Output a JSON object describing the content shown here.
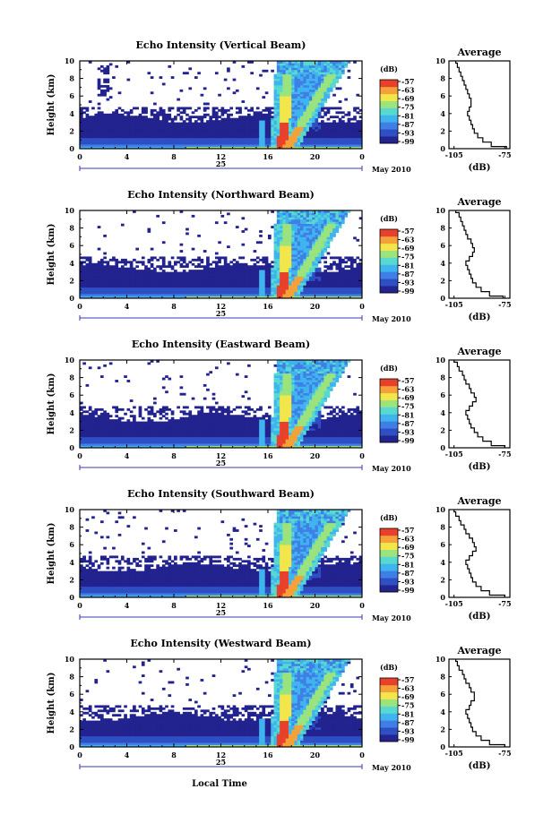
{
  "colors": {
    "scale": [
      "#23238f",
      "#2e4fc4",
      "#3f7fe6",
      "#3fb4ef",
      "#57d9d0",
      "#9be37c",
      "#f2e64a",
      "#f5a13a",
      "#e8412b"
    ],
    "axis": "#000000",
    "date_bar": "#3a3ab5"
  },
  "common": {
    "xlabel": "Local Time",
    "date_center": "25",
    "date_label": "May 2010",
    "profile_title": "Average",
    "profile_xlabel": "(dB)",
    "colorbar_label": "(dB)",
    "ylabel": "Height (km)"
  },
  "chart_data": [
    {
      "type": "heatmap",
      "title": "Echo Intensity (Vertical Beam)",
      "xlabel": "Local Time",
      "ylabel": "Height (km)",
      "x_ticks": [
        "0",
        "4",
        "8",
        "12",
        "16",
        "20",
        "0"
      ],
      "y_ticks": [
        "0",
        "2",
        "4",
        "6",
        "8",
        "10"
      ],
      "xlim": [
        0,
        24
      ],
      "ylim": [
        0,
        10
      ],
      "colorbar": {
        "label": "(dB)",
        "ticks": [
          "-57",
          "-63",
          "-69",
          "-75",
          "-81",
          "-87",
          "-93",
          "-99"
        ]
      },
      "date_axis": {
        "center": "25",
        "label": "May 2010"
      },
      "profile": {
        "title": "Average",
        "xlabel": "(dB)",
        "xticks": [
          "-105",
          "-75"
        ],
        "xlim": [
          -108,
          -72
        ],
        "heights": [
          0,
          0.5,
          1,
          1.5,
          2,
          2.5,
          3,
          3.5,
          4,
          4.5,
          5,
          5.5,
          6,
          6.5,
          7,
          7.5,
          8,
          8.5,
          9,
          9.5,
          10
        ],
        "values": [
          -74,
          -83,
          -88,
          -91,
          -93,
          -94,
          -95,
          -96,
          -97,
          -96,
          -95,
          -95,
          -96,
          -97,
          -98,
          -99,
          -100,
          -101,
          -102,
          -103,
          -104
        ]
      }
    },
    {
      "type": "heatmap",
      "title": "Echo Intensity (Northward Beam)",
      "xlabel": "Local Time",
      "ylabel": "Height (km)",
      "x_ticks": [
        "0",
        "4",
        "8",
        "12",
        "16",
        "20",
        "0"
      ],
      "y_ticks": [
        "0",
        "2",
        "4",
        "6",
        "8",
        "10"
      ],
      "xlim": [
        0,
        24
      ],
      "ylim": [
        0,
        10
      ],
      "colorbar": {
        "label": "(dB)",
        "ticks": [
          "-57",
          "-63",
          "-69",
          "-75",
          "-81",
          "-87",
          "-93",
          "-99"
        ]
      },
      "date_axis": {
        "center": "25",
        "label": "May 2010"
      },
      "profile": {
        "title": "Average",
        "xlabel": "(dB)",
        "xticks": [
          "-105",
          "-75"
        ],
        "xlim": [
          -108,
          -72
        ],
        "heights": [
          0,
          0.5,
          1,
          1.5,
          2,
          2.5,
          3,
          3.5,
          4,
          4.5,
          5,
          5.5,
          6,
          6.5,
          7,
          7.5,
          8,
          8.5,
          9,
          9.5,
          10
        ],
        "values": [
          -76,
          -84,
          -89,
          -92,
          -94,
          -95,
          -96,
          -97,
          -98,
          -96,
          -94,
          -93,
          -94,
          -95,
          -97,
          -98,
          -99,
          -100,
          -101,
          -102,
          -104
        ]
      }
    },
    {
      "type": "heatmap",
      "title": "Echo Intensity (Eastward Beam)",
      "xlabel": "Local Time",
      "ylabel": "Height (km)",
      "x_ticks": [
        "0",
        "4",
        "8",
        "12",
        "16",
        "20",
        "0"
      ],
      "y_ticks": [
        "0",
        "2",
        "4",
        "6",
        "8",
        "10"
      ],
      "xlim": [
        0,
        24
      ],
      "ylim": [
        0,
        10
      ],
      "colorbar": {
        "label": "(dB)",
        "ticks": [
          "-57",
          "-63",
          "-69",
          "-75",
          "-81",
          "-87",
          "-93",
          "-99"
        ]
      },
      "date_axis": {
        "center": "25",
        "label": "May 2010"
      },
      "profile": {
        "title": "Average",
        "xlabel": "(dB)",
        "xticks": [
          "-105",
          "-75"
        ],
        "xlim": [
          -108,
          -72
        ],
        "heights": [
          0,
          0.5,
          1,
          1.5,
          2,
          2.5,
          3,
          3.5,
          4,
          4.5,
          5,
          5.5,
          6,
          6.5,
          7,
          7.5,
          8,
          8.5,
          9,
          9.5,
          10
        ],
        "values": [
          -75,
          -83,
          -88,
          -91,
          -93,
          -95,
          -96,
          -97,
          -98,
          -96,
          -94,
          -92,
          -93,
          -95,
          -96,
          -98,
          -99,
          -100,
          -102,
          -103,
          -105
        ]
      }
    },
    {
      "type": "heatmap",
      "title": "Echo Intensity (Southward Beam)",
      "xlabel": "Local Time",
      "ylabel": "Height (km)",
      "x_ticks": [
        "0",
        "4",
        "8",
        "12",
        "16",
        "20",
        "0"
      ],
      "y_ticks": [
        "0",
        "2",
        "4",
        "6",
        "8",
        "10"
      ],
      "xlim": [
        0,
        24
      ],
      "ylim": [
        0,
        10
      ],
      "colorbar": {
        "label": "(dB)",
        "ticks": [
          "-57",
          "-63",
          "-69",
          "-75",
          "-81",
          "-87",
          "-93",
          "-99"
        ]
      },
      "date_axis": {
        "center": "25",
        "label": "May 2010"
      },
      "profile": {
        "title": "Average",
        "xlabel": "(dB)",
        "xticks": [
          "-105",
          "-75"
        ],
        "xlim": [
          -108,
          -72
        ],
        "heights": [
          0,
          0.5,
          1,
          1.5,
          2,
          2.5,
          3,
          3.5,
          4,
          4.5,
          5,
          5.5,
          6,
          6.5,
          7,
          7.5,
          8,
          8.5,
          9,
          9.5,
          10
        ],
        "values": [
          -75,
          -84,
          -89,
          -92,
          -94,
          -95,
          -96,
          -97,
          -98,
          -96,
          -94,
          -92,
          -93,
          -94,
          -96,
          -98,
          -99,
          -101,
          -102,
          -104,
          -105
        ]
      }
    },
    {
      "type": "heatmap",
      "title": "Echo Intensity (Westward Beam)",
      "xlabel": "Local Time",
      "ylabel": "Height (km)",
      "x_ticks": [
        "0",
        "4",
        "8",
        "12",
        "16",
        "20",
        "0"
      ],
      "y_ticks": [
        "0",
        "2",
        "4",
        "6",
        "8",
        "10"
      ],
      "xlim": [
        0,
        24
      ],
      "ylim": [
        0,
        10
      ],
      "colorbar": {
        "label": "(dB)",
        "ticks": [
          "-57",
          "-63",
          "-69",
          "-75",
          "-81",
          "-87",
          "-93",
          "-99"
        ]
      },
      "date_axis": {
        "center": "25",
        "label": "May 2010"
      },
      "profile": {
        "title": "Average",
        "xlabel": "(dB)",
        "xticks": [
          "-105",
          "-75"
        ],
        "xlim": [
          -108,
          -72
        ],
        "heights": [
          0,
          0.5,
          1,
          1.5,
          2,
          2.5,
          3,
          3.5,
          4,
          4.5,
          5,
          5.5,
          6,
          6.5,
          7,
          7.5,
          8,
          8.5,
          9,
          9.5,
          10
        ],
        "values": [
          -75,
          -84,
          -89,
          -92,
          -94,
          -95,
          -96,
          -97,
          -98,
          -96,
          -95,
          -93,
          -93,
          -95,
          -96,
          -98,
          -99,
          -100,
          -102,
          -103,
          -104
        ]
      }
    }
  ]
}
